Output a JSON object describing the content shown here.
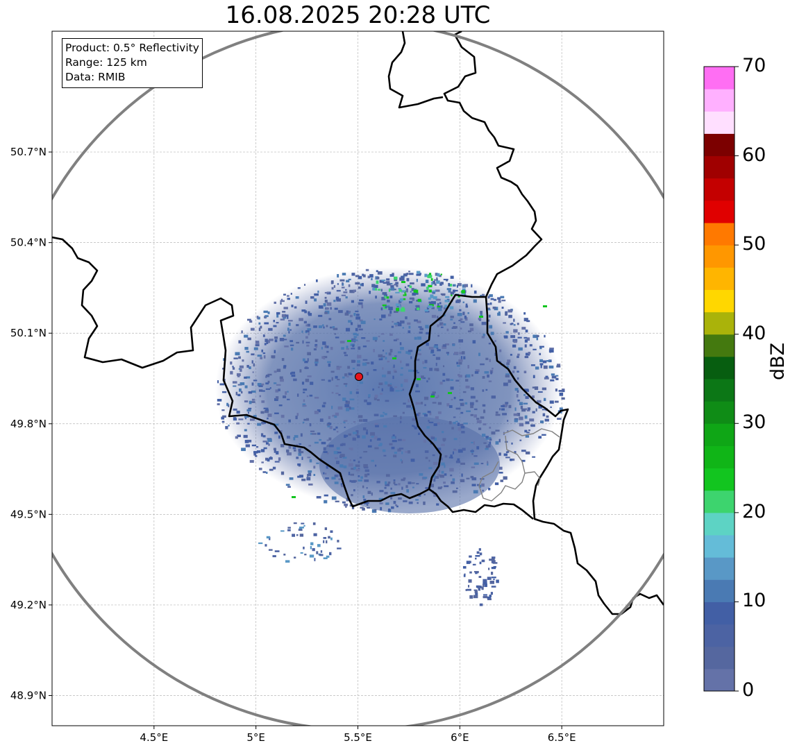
{
  "title": "16.08.2025 20:28 UTC",
  "info": {
    "product": "Product: 0.5° Reflectivity",
    "range": "Range: 125 km",
    "data": "Data: RMIB"
  },
  "map": {
    "lon_range": [
      4.0,
      7.0
    ],
    "lat_range": [
      48.8,
      51.1
    ],
    "x_ticks": [
      {
        "value": 4.5,
        "label": "4.5°E"
      },
      {
        "value": 5.0,
        "label": "5°E"
      },
      {
        "value": 5.5,
        "label": "5.5°E"
      },
      {
        "value": 6.0,
        "label": "6°E"
      },
      {
        "value": 6.5,
        "label": "6.5°E"
      }
    ],
    "y_ticks": [
      {
        "value": 50.7,
        "label": "50.7°N"
      },
      {
        "value": 50.4,
        "label": "50.4°N"
      },
      {
        "value": 50.1,
        "label": "50.1°N"
      },
      {
        "value": 49.8,
        "label": "49.8°N"
      },
      {
        "value": 49.5,
        "label": "49.5°N"
      },
      {
        "value": 49.2,
        "label": "49.2°N"
      },
      {
        "value": 48.9,
        "label": "48.9°N"
      }
    ],
    "grid": true,
    "radar_site": {
      "lon": 5.506,
      "lat": 49.914,
      "color": "#e8141c"
    },
    "range_ring_color": "#808080",
    "border_color": "#000000"
  },
  "colorbar": {
    "label": "dBZ",
    "min": 0,
    "max": 70,
    "step": 2.5,
    "ticks": [
      {
        "value": 0,
        "label": "0"
      },
      {
        "value": 10,
        "label": "10"
      },
      {
        "value": 20,
        "label": "20"
      },
      {
        "value": 30,
        "label": "30"
      },
      {
        "value": 40,
        "label": "40"
      },
      {
        "value": 50,
        "label": "50"
      },
      {
        "value": 60,
        "label": "60"
      },
      {
        "value": 70,
        "label": "70"
      }
    ],
    "colors": [
      "#6472a8",
      "#55679f",
      "#4c63a3",
      "#425fa5",
      "#4a7ab3",
      "#5998c6",
      "#64bcd8",
      "#5dd3c4",
      "#3dd46e",
      "#12c51f",
      "#10b517",
      "#0fa616",
      "#0f8c16",
      "#0c7716",
      "#075e10",
      "#44790f",
      "#aab30a",
      "#ffd700",
      "#ffb500",
      "#ff9700",
      "#ff7900",
      "#e00000",
      "#c40000",
      "#a00000",
      "#7c0000",
      "#ffdfff",
      "#ffb0ff",
      "#ff6ef3"
    ]
  }
}
